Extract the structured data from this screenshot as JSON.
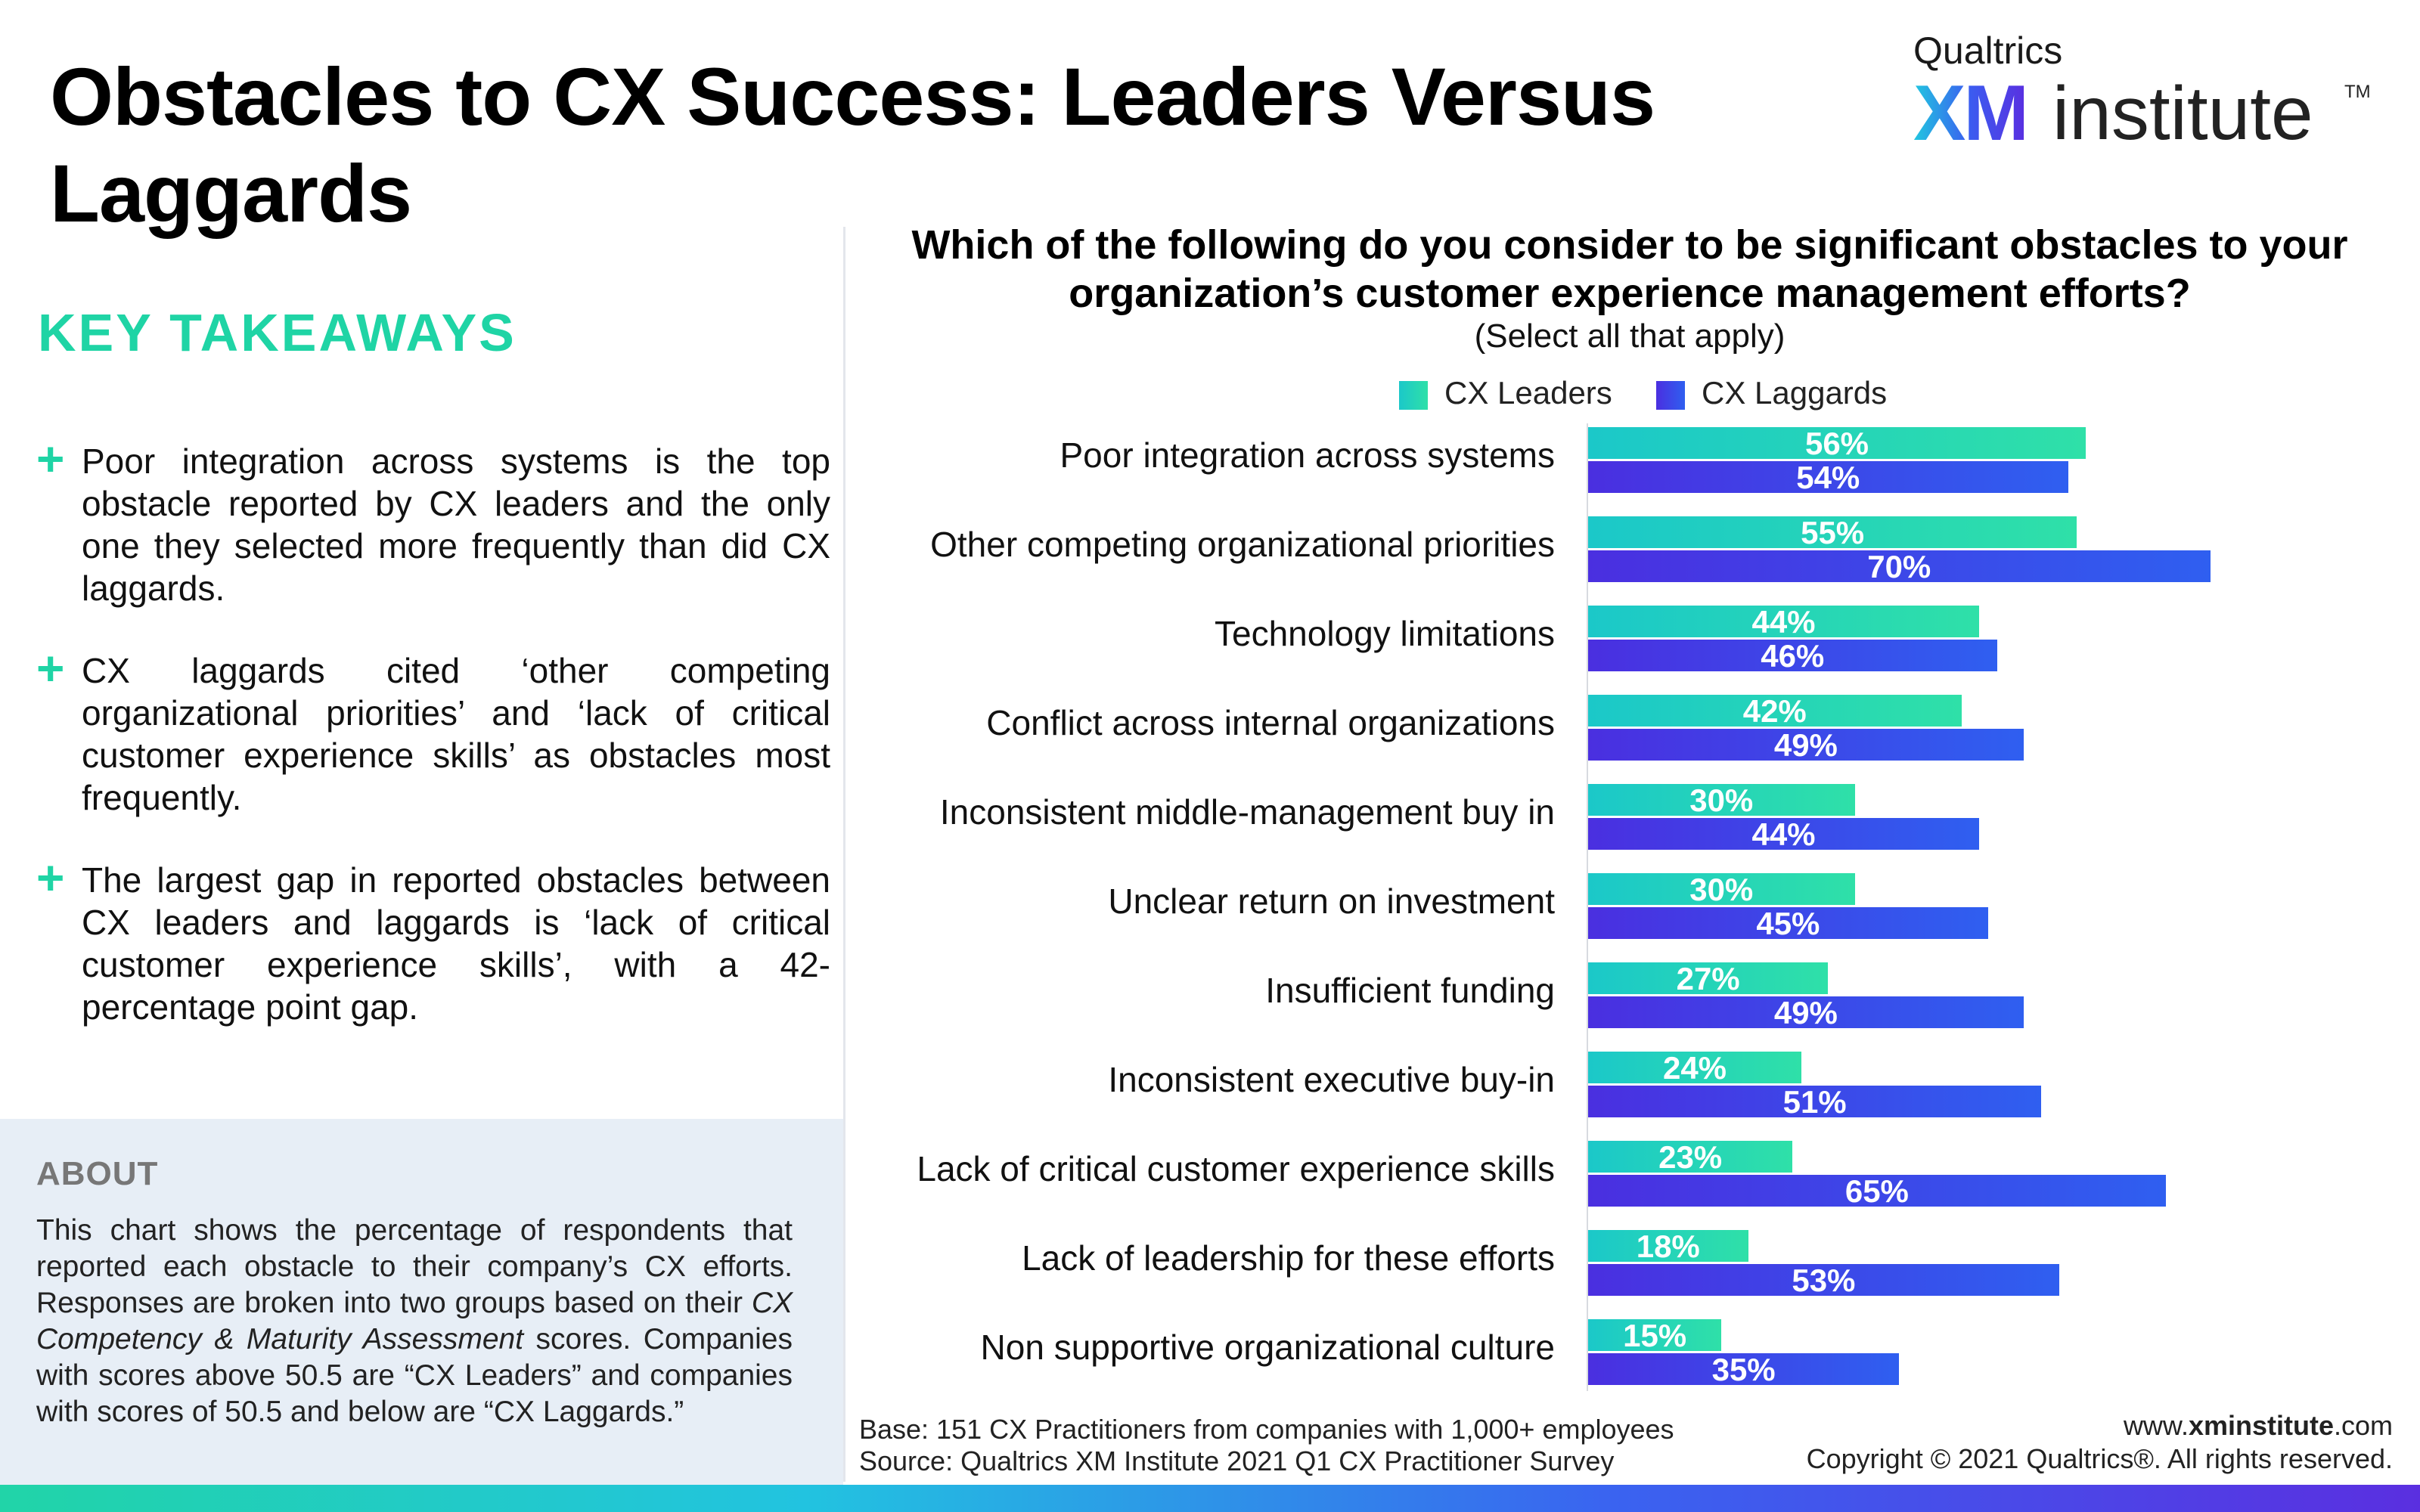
{
  "title": "Obstacles to CX Success: Leaders Versus Laggards",
  "logo": {
    "top": "Qualtrics",
    "xm": "XM",
    "institute": "institute",
    "tm": "TM"
  },
  "takeaways": {
    "heading": "KEY TAKEAWAYS",
    "items": [
      "Poor integration across systems is the top obstacle reported by CX leaders and the only one they selected more frequently than did CX laggards.",
      "CX laggards cited ‘other competing organizational priorities’ and ‘lack of critical customer experience skills’ as obstacles most frequently.",
      "The largest gap in reported obstacles between CX leaders and laggards is ‘lack of critical customer experience skills’, with a 42-percentage point gap."
    ]
  },
  "about": {
    "heading": "ABOUT",
    "text_1": "This chart shows the percentage of respondents that reported each obstacle to their company’s CX efforts. Responses are broken into two groups based on their ",
    "text_italic": "CX Competency & Maturity Assessment",
    "text_2": " scores. Companies with scores above 50.5 are “CX Leaders” and companies with scores of 50.5 and below  are “CX Laggards.”"
  },
  "footer": {
    "base": "Base: 151 CX Practitioners from companies with 1,000+ employees",
    "source": "Source: Qualtrics XM Institute 2021 Q1 CX Practitioner Survey",
    "website_prefix": "www.",
    "website_bold": "xminstitute",
    "website_suffix": ".com",
    "copyright": "Copyright © 2021 Qualtrics®. All rights reserved."
  },
  "chart_data": {
    "type": "bar",
    "orientation": "horizontal",
    "title": "Which of the following do you consider to be significant obstacles to your organization’s customer experience management efforts?",
    "subtitle": "(Select all that apply)",
    "legend_position": "top",
    "categories": [
      "Poor integration across systems",
      "Other competing organizational priorities",
      "Technology limitations",
      "Conflict across internal organizations",
      "Inconsistent middle-management buy in",
      "Unclear return on investment",
      "Insufficient funding",
      "Inconsistent executive buy-in",
      "Lack of critical customer experience skills",
      "Lack of leadership for these efforts",
      "Non supportive organizational culture"
    ],
    "series": [
      {
        "name": "CX Leaders",
        "color": "#22d3b0",
        "values": [
          56,
          55,
          44,
          42,
          30,
          30,
          27,
          24,
          23,
          18,
          15
        ]
      },
      {
        "name": "CX Laggards",
        "color": "#3d45e8",
        "values": [
          54,
          70,
          46,
          49,
          44,
          45,
          49,
          51,
          65,
          53,
          35
        ]
      }
    ],
    "value_suffix": "%",
    "xlim": [
      0,
      100
    ]
  }
}
